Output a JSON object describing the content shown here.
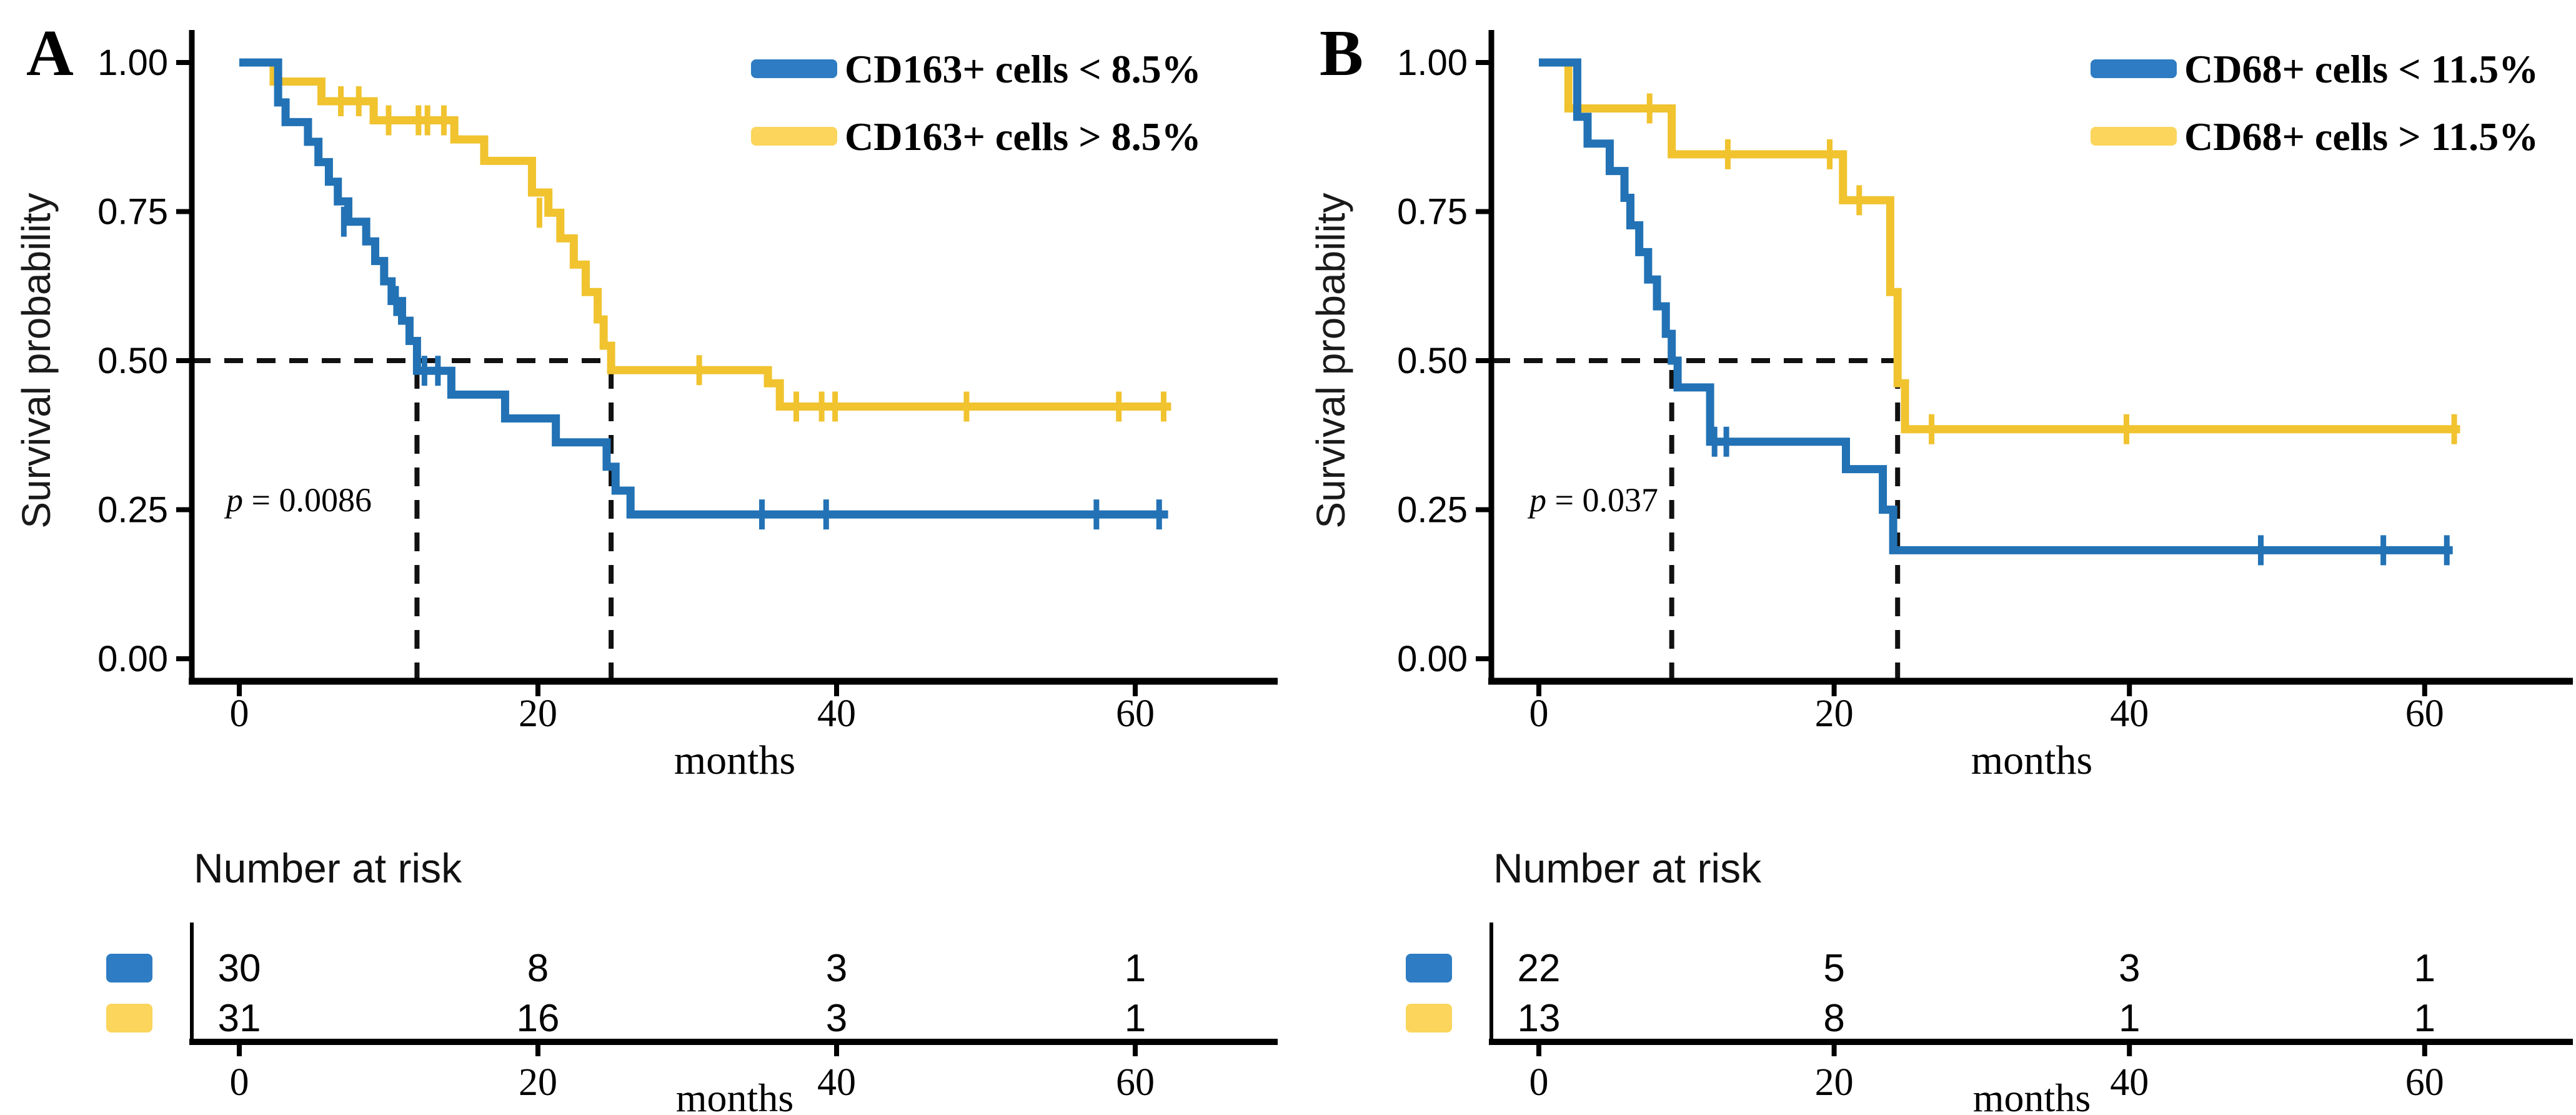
{
  "figure": {
    "background": "#ffffff",
    "description_visible_text_only": true
  },
  "colors": {
    "blue_curve": "#2272b5",
    "yellow_curve": "#f0c32f",
    "blue_swatch": "#2e7cc3",
    "yellow_swatch": "#fbd55c",
    "blue_label_text": "#17375d",
    "yellow_label_text": "#a37e00",
    "dashed_line": "#111111",
    "axis": "#000000"
  },
  "chart_data": [
    {
      "type": "line",
      "subtype": "kaplan-meier-step",
      "panel_label": "A",
      "ylabel": "Survival probability",
      "xlabel": "months",
      "x_ticks": [
        0,
        20,
        40,
        60
      ],
      "y_tick_labels": [
        "1.00",
        "0.75",
        "0.50",
        "0.25",
        "0.00"
      ],
      "xlim": [
        0,
        66
      ],
      "ylim": [
        0,
        1
      ],
      "grid": false,
      "legend_position": "top-right",
      "p_value": "p = 0.0086",
      "median_months": {
        "blue": 11.9,
        "yellow": 24.9
      },
      "legend": [
        {
          "name": "CD163+ cells < 8.5%",
          "color": "blue"
        },
        {
          "name": "CD163+ cells > 8.5%",
          "color": "yellow"
        }
      ],
      "series": [
        {
          "name": "CD163+ cells > 8.5%",
          "color": "yellow",
          "end": 62.4,
          "steps": [
            [
              0,
              1.0
            ],
            [
              2.3,
              0.968
            ],
            [
              5.5,
              0.935
            ],
            [
              9.0,
              0.903
            ],
            [
              14.4,
              0.871
            ],
            [
              16.4,
              0.835
            ],
            [
              19.6,
              0.782
            ],
            [
              20.7,
              0.748
            ],
            [
              21.5,
              0.705
            ],
            [
              22.4,
              0.661
            ],
            [
              23.2,
              0.615
            ],
            [
              24.0,
              0.569
            ],
            [
              24.4,
              0.525
            ],
            [
              24.9,
              0.484
            ],
            [
              35.4,
              0.462
            ],
            [
              36.2,
              0.423
            ]
          ],
          "censors": [
            [
              6.8,
              0.935
            ],
            [
              8.0,
              0.935
            ],
            [
              10.0,
              0.903
            ],
            [
              12.0,
              0.903
            ],
            [
              12.6,
              0.903
            ],
            [
              13.7,
              0.903
            ],
            [
              20.1,
              0.748
            ],
            [
              30.8,
              0.484
            ],
            [
              37.3,
              0.423
            ],
            [
              39.0,
              0.423
            ],
            [
              39.9,
              0.423
            ],
            [
              48.7,
              0.423
            ],
            [
              58.9,
              0.423
            ],
            [
              61.9,
              0.423
            ]
          ]
        },
        {
          "name": "CD163+ cells < 8.5%",
          "color": "blue",
          "end": 62.2,
          "steps": [
            [
              0,
              1.0
            ],
            [
              2.6,
              0.933
            ],
            [
              3.1,
              0.9
            ],
            [
              4.6,
              0.867
            ],
            [
              5.3,
              0.833
            ],
            [
              6.0,
              0.8
            ],
            [
              6.6,
              0.767
            ],
            [
              7.3,
              0.733
            ],
            [
              8.5,
              0.7
            ],
            [
              9.1,
              0.667
            ],
            [
              9.7,
              0.633
            ],
            [
              10.2,
              0.6
            ],
            [
              10.9,
              0.567
            ],
            [
              11.4,
              0.533
            ],
            [
              11.9,
              0.483
            ],
            [
              14.2,
              0.443
            ],
            [
              17.8,
              0.403
            ],
            [
              21.2,
              0.363
            ],
            [
              24.6,
              0.322
            ],
            [
              25.2,
              0.282
            ],
            [
              26.2,
              0.242
            ]
          ],
          "censors": [
            [
              7.0,
              0.733
            ],
            [
              10.5,
              0.6
            ],
            [
              12.4,
              0.483
            ],
            [
              13.3,
              0.483
            ],
            [
              35.0,
              0.242
            ],
            [
              39.3,
              0.242
            ],
            [
              57.4,
              0.242
            ],
            [
              61.6,
              0.242
            ]
          ]
        }
      ],
      "risk_table": {
        "title": "Number at risk",
        "xlabel": "months",
        "x_ticks": [
          0,
          20,
          40,
          60
        ],
        "rows": [
          {
            "color": "blue",
            "counts": [
              "30",
              "8",
              "3",
              "1"
            ]
          },
          {
            "color": "yellow",
            "counts": [
              "31",
              "16",
              "3",
              "1"
            ]
          }
        ]
      }
    },
    {
      "type": "line",
      "subtype": "kaplan-meier-step",
      "panel_label": "B",
      "ylabel": "Survival probability",
      "xlabel": "months",
      "x_ticks": [
        0,
        20,
        40,
        60
      ],
      "y_tick_labels": [
        "1.00",
        "0.75",
        "0.50",
        "0.25",
        "0.00"
      ],
      "xlim": [
        0,
        66
      ],
      "ylim": [
        0,
        1
      ],
      "grid": false,
      "legend_position": "top-right",
      "p_value": "p = 0.037",
      "median_months": {
        "blue": 9.0,
        "yellow": 24.3
      },
      "legend": [
        {
          "name": "CD68+ cells < 11.5%",
          "color": "blue"
        },
        {
          "name": "CD68+ cells > 11.5%",
          "color": "yellow"
        }
      ],
      "series": [
        {
          "name": "CD68+ cells > 11.5%",
          "color": "yellow",
          "end": 62.4,
          "steps": [
            [
              0,
              1.0
            ],
            [
              2.0,
              0.923
            ],
            [
              9.0,
              0.846
            ],
            [
              20.6,
              0.769
            ],
            [
              23.8,
              0.615
            ],
            [
              24.3,
              0.462
            ],
            [
              24.8,
              0.385
            ]
          ],
          "censors": [
            [
              7.5,
              0.923
            ],
            [
              12.8,
              0.846
            ],
            [
              19.7,
              0.846
            ],
            [
              21.7,
              0.769
            ],
            [
              26.6,
              0.385
            ],
            [
              39.8,
              0.385
            ],
            [
              62.0,
              0.385
            ]
          ]
        },
        {
          "name": "CD68+ cells < 11.5%",
          "color": "blue",
          "end": 61.9,
          "steps": [
            [
              0,
              1.0
            ],
            [
              2.6,
              0.909
            ],
            [
              3.3,
              0.864
            ],
            [
              4.8,
              0.818
            ],
            [
              5.8,
              0.773
            ],
            [
              6.2,
              0.727
            ],
            [
              6.8,
              0.682
            ],
            [
              7.4,
              0.636
            ],
            [
              8.0,
              0.591
            ],
            [
              8.6,
              0.545
            ],
            [
              9.0,
              0.5
            ],
            [
              9.4,
              0.455
            ],
            [
              11.6,
              0.364
            ],
            [
              20.8,
              0.318
            ],
            [
              23.3,
              0.25
            ],
            [
              24.0,
              0.182
            ]
          ],
          "censors": [
            [
              11.9,
              0.364
            ],
            [
              12.7,
              0.364
            ],
            [
              48.9,
              0.182
            ],
            [
              57.2,
              0.182
            ],
            [
              61.5,
              0.182
            ]
          ]
        }
      ],
      "risk_table": {
        "title": "Number at risk",
        "xlabel": "months",
        "x_ticks": [
          0,
          20,
          40,
          60
        ],
        "rows": [
          {
            "color": "blue",
            "counts": [
              "22",
              "5",
              "3",
              "1"
            ]
          },
          {
            "color": "yellow",
            "counts": [
              "13",
              "8",
              "1",
              "1"
            ]
          }
        ]
      }
    }
  ]
}
